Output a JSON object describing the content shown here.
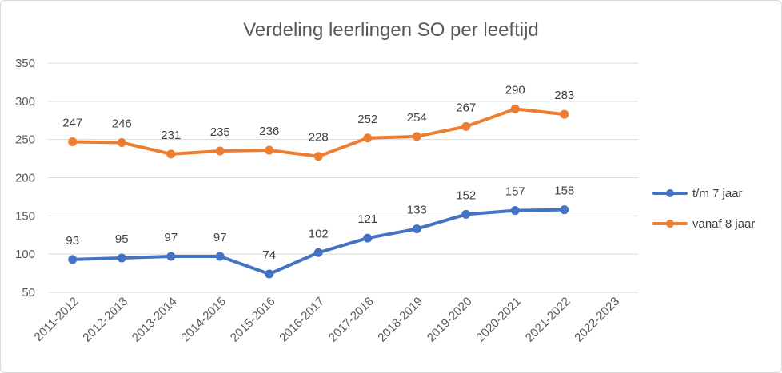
{
  "chart_data": {
    "type": "line",
    "title": "Verdeling leerlingen SO per leeftijd",
    "xlabel": "",
    "ylabel": "",
    "categories": [
      "2011-2012",
      "2012-2013",
      "2013-2014",
      "2014-2015",
      "2015-2016",
      "2016-2017",
      "2017-2018",
      "2018-2019",
      "2019-2020",
      "2020-2021",
      "2021-2022",
      "2022-2023"
    ],
    "ylim": [
      50,
      350
    ],
    "yticks": [
      50,
      100,
      150,
      200,
      250,
      300,
      350
    ],
    "grid": true,
    "legend_position": "right",
    "series": [
      {
        "name": "t/m 7 jaar",
        "color": "#4472C4",
        "values": [
          93,
          95,
          97,
          97,
          74,
          102,
          121,
          133,
          152,
          157,
          158,
          null
        ]
      },
      {
        "name": "vanaf 8 jaar",
        "color": "#ED7D31",
        "values": [
          247,
          246,
          231,
          235,
          236,
          228,
          252,
          254,
          267,
          290,
          283,
          null
        ]
      }
    ]
  }
}
